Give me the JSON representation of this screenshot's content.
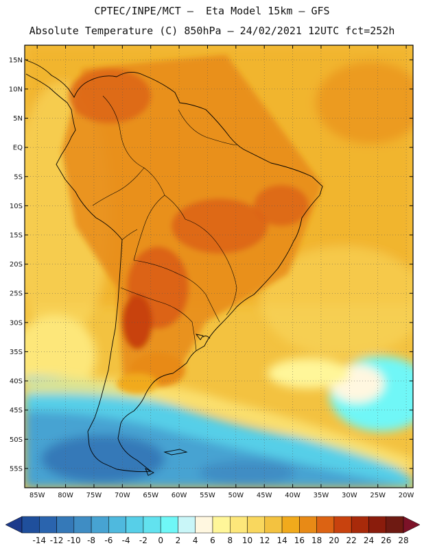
{
  "header": {
    "line1": "CPTEC/INPE/MCT –  Eta Model 15km – GFS",
    "line2": "Absolute Temperature (C) 850hPa – 24/02/2021 12UTC fct=252h"
  },
  "map": {
    "region": "South America",
    "lat_labels": [
      "15N",
      "10N",
      "5N",
      "EQ",
      "5S",
      "10S",
      "15S",
      "20S",
      "25S",
      "30S",
      "35S",
      "40S",
      "45S",
      "50S",
      "55S"
    ],
    "lon_labels": [
      "85W",
      "80W",
      "75W",
      "70W",
      "65W",
      "60W",
      "55W",
      "50W",
      "45W",
      "40W",
      "35W",
      "30W",
      "25W",
      "20W"
    ],
    "lat_values": [
      15,
      10,
      5,
      0,
      -5,
      -10,
      -15,
      -20,
      -25,
      -30,
      -35,
      -40,
      -45,
      -50,
      -55
    ],
    "lon_values": [
      -85,
      -80,
      -75,
      -70,
      -65,
      -60,
      -55,
      -50,
      -45,
      -40,
      -35,
      -30,
      -25,
      -20
    ]
  },
  "colorbar": {
    "labels": [
      "-14",
      "-12",
      "-10",
      "-8",
      "-6",
      "-4",
      "-2",
      "0",
      "2",
      "4",
      "6",
      "8",
      "10",
      "12",
      "14",
      "16",
      "18",
      "20",
      "22",
      "24",
      "26",
      "28"
    ],
    "colors": [
      "#1c3a8c",
      "#1f4f9c",
      "#2a64ae",
      "#3579b8",
      "#3f8dc4",
      "#47a3d2",
      "#4fb9de",
      "#57cfe8",
      "#62e2ef",
      "#6ff7f7",
      "#c9f6f8",
      "#fff7e0",
      "#fff699",
      "#fde77a",
      "#f9d75e",
      "#f3c240",
      "#f1aa1c",
      "#e88a16",
      "#dc6313",
      "#c8420e",
      "#a82a0a",
      "#8a1c0c",
      "#6e1a12",
      "#7c1228"
    ]
  }
}
